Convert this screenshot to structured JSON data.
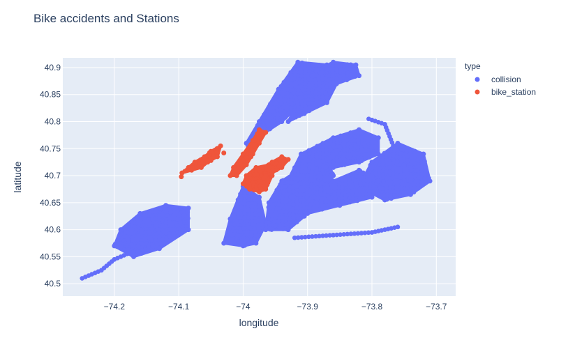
{
  "chart_data": {
    "type": "scatter",
    "title": "Bike accidents and Stations",
    "xlabel": "longitude",
    "ylabel": "latitude",
    "xlim": [
      -74.28,
      -73.67
    ],
    "ylim": [
      40.477,
      40.918
    ],
    "xticks": [
      -74.2,
      -74.1,
      -74.0,
      -73.9,
      -73.8,
      -73.7
    ],
    "xtick_labels": [
      "−74.2",
      "−74.1",
      "−74",
      "−73.9",
      "−73.8",
      "−73.7"
    ],
    "yticks": [
      40.5,
      40.55,
      40.6,
      40.65,
      40.7,
      40.75,
      40.8,
      40.85,
      40.9
    ],
    "ytick_labels": [
      "40.5",
      "40.55",
      "40.6",
      "40.65",
      "40.7",
      "40.75",
      "40.8",
      "40.85",
      "40.9"
    ],
    "grid": true,
    "legend": {
      "title": "type",
      "placement": "top-right outside"
    },
    "series": [
      {
        "name": "collision",
        "color": "#636efa",
        "regions": [
          {
            "lon": [
              -73.99,
              -73.985,
              -73.94,
              -73.905,
              -73.875,
              -73.865,
              -73.87,
              -73.915,
              -73.945,
              -73.975,
              -73.995
            ],
            "lat": [
              40.74,
              40.765,
              40.8,
              40.84,
              40.875,
              40.89,
              40.905,
              40.91,
              40.86,
              40.8,
              40.76
            ]
          },
          {
            "lon": [
              -73.93,
              -73.905,
              -73.87,
              -73.855,
              -73.82,
              -73.825,
              -73.86,
              -73.885,
              -73.91
            ],
            "lat": [
              40.8,
              40.815,
              40.835,
              40.87,
              40.885,
              40.905,
              40.91,
              40.895,
              40.845
            ]
          },
          {
            "lon": [
              -74.03,
              -74.0,
              -73.98,
              -73.965,
              -73.975,
              -74.0,
              -74.02
            ],
            "lat": [
              40.575,
              40.57,
              40.575,
              40.61,
              40.66,
              40.68,
              40.62
            ]
          },
          {
            "lon": [
              -73.965,
              -73.93,
              -73.905,
              -73.88,
              -73.86,
              -73.87,
              -73.9,
              -73.94,
              -73.96
            ],
            "lat": [
              40.6,
              40.6,
              40.625,
              40.66,
              40.7,
              40.73,
              40.72,
              40.69,
              40.65
            ]
          },
          {
            "lon": [
              -73.935,
              -73.9,
              -73.86,
              -73.82,
              -73.79,
              -73.79,
              -73.82,
              -73.86,
              -73.91
            ],
            "lat": [
              40.68,
              40.7,
              40.715,
              40.725,
              40.74,
              40.77,
              40.785,
              40.77,
              40.74
            ]
          },
          {
            "lon": [
              -73.82,
              -73.78,
              -73.74,
              -73.71,
              -73.72,
              -73.76,
              -73.8
            ],
            "lat": [
              40.68,
              40.655,
              40.665,
              40.69,
              40.74,
              40.76,
              40.725
            ]
          },
          {
            "lon": [
              -73.9,
              -73.85,
              -73.8,
              -73.79,
              -73.82,
              -73.86,
              -73.89
            ],
            "lat": [
              40.63,
              40.645,
              40.66,
              40.69,
              40.71,
              40.69,
              40.66
            ]
          },
          {
            "lon": [
              -74.2,
              -74.17,
              -74.13,
              -74.085,
              -74.085,
              -74.12,
              -74.16,
              -74.19
            ],
            "lat": [
              40.57,
              40.55,
              40.565,
              40.6,
              40.64,
              40.645,
              40.63,
              40.6
            ]
          }
        ],
        "lines": [
          {
            "lon": [
              -73.92,
              -73.86,
              -73.8,
              -73.76
            ],
            "lat": [
              40.585,
              40.59,
              40.595,
              40.605
            ]
          },
          {
            "lon": [
              -74.25,
              -74.22,
              -74.2,
              -74.17
            ],
            "lat": [
              40.51,
              40.525,
              40.545,
              40.56
            ]
          },
          {
            "lon": [
              -73.805,
              -73.78,
              -73.765
            ],
            "lat": [
              40.805,
              40.795,
              40.75
            ]
          }
        ]
      },
      {
        "name": "bike_station",
        "color": "#ef553b",
        "regions": [
          {
            "lon": [
              -74.02,
              -74.015,
              -74.0,
              -73.985,
              -73.975,
              -73.965,
              -73.975,
              -73.985,
              -73.995,
              -74.01
            ],
            "lat": [
              40.7,
              40.715,
              40.74,
              40.765,
              40.785,
              40.78,
              40.76,
              40.74,
              40.72,
              40.7
            ]
          },
          {
            "lon": [
              -74.0,
              -73.99,
              -73.975,
              -73.965,
              -73.955,
              -73.96,
              -73.98,
              -73.995
            ],
            "lat": [
              40.685,
              40.675,
              40.67,
              40.675,
              40.7,
              40.72,
              40.715,
              40.7
            ]
          },
          {
            "lon": [
              -73.97,
              -73.955,
              -73.94,
              -73.93,
              -73.94,
              -73.955,
              -73.965
            ],
            "lat": [
              40.715,
              40.725,
              40.735,
              40.73,
              40.715,
              40.705,
              40.7
            ]
          },
          {
            "lon": [
              -74.095,
              -74.085,
              -74.075,
              -74.06,
              -74.05,
              -74.035,
              -74.04,
              -74.055,
              -74.065,
              -74.08
            ],
            "lat": [
              40.705,
              40.715,
              40.725,
              40.735,
              40.745,
              40.755,
              40.735,
              40.725,
              40.715,
              40.71
            ]
          }
        ],
        "points": [
          {
            "lon": -74.096,
            "lat": 40.698
          },
          {
            "lon": -74.05,
            "lat": 40.728
          },
          {
            "lon": -74.03,
            "lat": 40.742
          }
        ]
      }
    ]
  }
}
